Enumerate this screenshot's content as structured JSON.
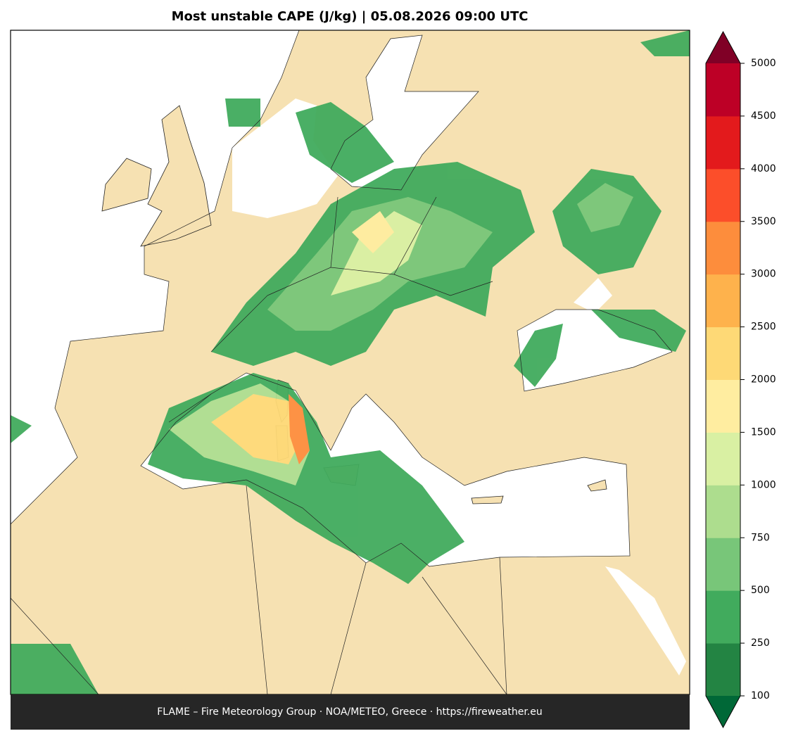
{
  "title": "Most unstable CAPE (J/kg)  |  05.08.2026 09:00 UTC",
  "footer": "FLAME – Fire Meteorology Group · NOA/METEO, Greece · https://fireweather.eu",
  "colorbar": {
    "ticks": [
      100,
      250,
      500,
      750,
      1000,
      1500,
      2000,
      2500,
      3000,
      3500,
      4000,
      4500,
      5000
    ],
    "colors": [
      "#238443",
      "#41ab5d",
      "#78c679",
      "#addd8e",
      "#d9f0a3",
      "#ffeda0",
      "#fed976",
      "#feb24c",
      "#fd8d3c",
      "#fc4e2a",
      "#e31a1c",
      "#bd0026"
    ],
    "under_color": "#006837",
    "over_color": "#800026"
  }
}
